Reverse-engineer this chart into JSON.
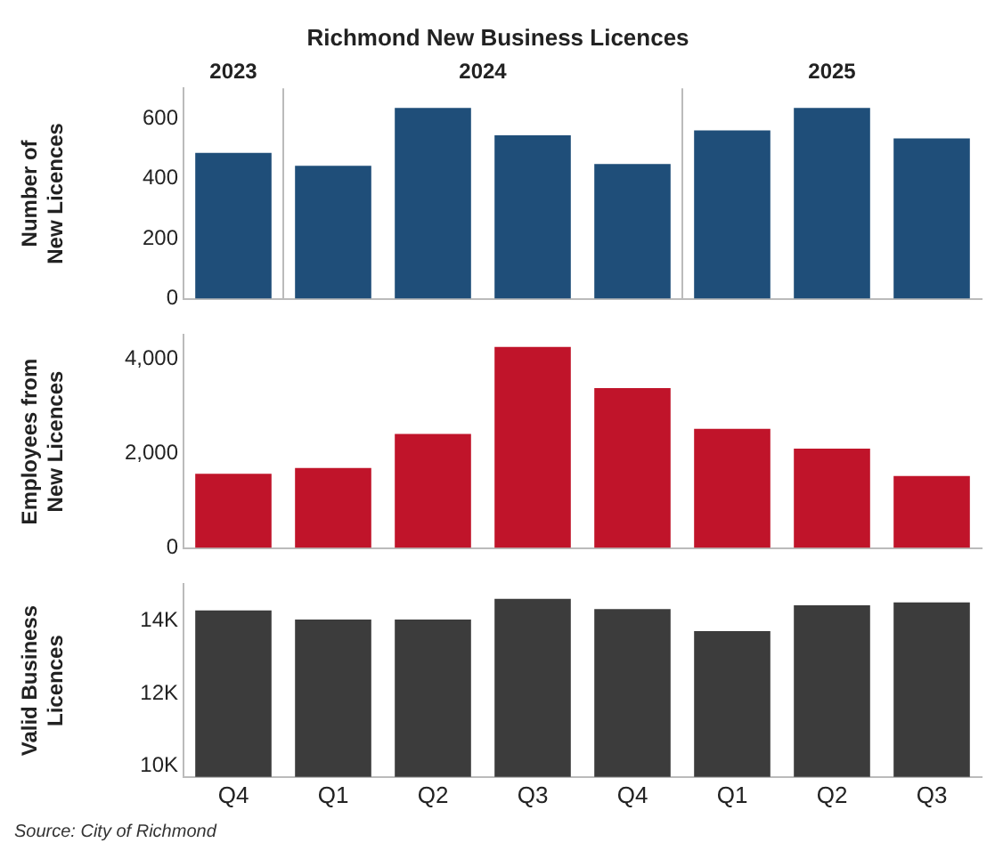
{
  "chart_data": [
    {
      "type": "bar",
      "title": "Richmond New Business Licences",
      "ylabel": "Number of New Licences",
      "categories": [
        null,
        null,
        null,
        null,
        null,
        null,
        null,
        null
      ],
      "values": [
        485,
        442,
        635,
        544,
        448,
        560,
        635,
        533
      ],
      "color": "#1f4e79",
      "ylim": [
        0,
        700
      ],
      "yticks": [
        0,
        200,
        400,
        600
      ],
      "tick_labels": "y",
      "annotations": [
        "2023",
        "2024",
        "2025"
      ]
    },
    {
      "type": "bar",
      "ylabel": "Employees from New Licences",
      "categories": [
        null,
        null,
        null,
        null,
        null,
        null,
        null,
        null
      ],
      "values": [
        1570,
        1690,
        2410,
        4250,
        3380,
        2520,
        2100,
        1520
      ],
      "color": "#c0142a",
      "ylim": [
        0,
        4500
      ],
      "yticks": [
        0,
        {
          "value": 2000,
          "label": "2,000"
        },
        {
          "value": 4000,
          "label": "4,000"
        }
      ],
      "tick_labels": "y"
    },
    {
      "type": "bar",
      "ylabel": "Valid Business Licences",
      "categories": [
        "Q4",
        "Q1",
        "Q2",
        "Q3",
        "Q4",
        "Q1",
        "Q2",
        "Q3"
      ],
      "values": [
        14280,
        14030,
        14030,
        14600,
        14320,
        13710,
        14420,
        14500
      ],
      "color": "#3c3c3c",
      "ylim": [
        9700,
        15000
      ],
      "yticks": [
        {
          "value": 10000,
          "label": "10K"
        },
        {
          "value": 12000,
          "label": "12K"
        },
        {
          "value": 14000,
          "label": "14K"
        }
      ],
      "annotations": [
        "Source: City of Richmond"
      ]
    }
  ]
}
